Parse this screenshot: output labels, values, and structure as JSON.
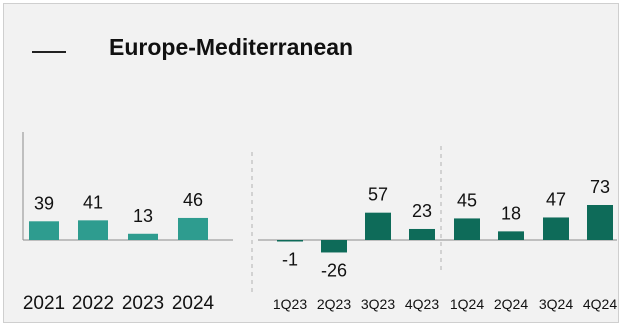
{
  "title": "Europe-Mediterranean",
  "colors": {
    "annual_bar": "#2e9c8f",
    "quarter_bar": "#0e6b59",
    "background": "#f2f2f2",
    "axis": "#8c8c8c",
    "divider": "#b3b3b3"
  },
  "chart_data": [
    {
      "type": "bar",
      "title": "Europe-Mediterranean",
      "xlabel": "",
      "ylabel": "",
      "grid": false,
      "categories": [
        "2021",
        "2022",
        "2023",
        "2024"
      ],
      "values": [
        39,
        41,
        13,
        46
      ],
      "ylim": [
        -30,
        80
      ]
    },
    {
      "type": "bar",
      "title": "",
      "xlabel": "",
      "ylabel": "",
      "grid": false,
      "categories": [
        "1Q23",
        "2Q23",
        "3Q23",
        "4Q23",
        "1Q24",
        "2Q24",
        "3Q24",
        "4Q24"
      ],
      "values": [
        -1,
        -26,
        57,
        23,
        45,
        18,
        47,
        73
      ],
      "ylim": [
        -30,
        80
      ]
    }
  ]
}
